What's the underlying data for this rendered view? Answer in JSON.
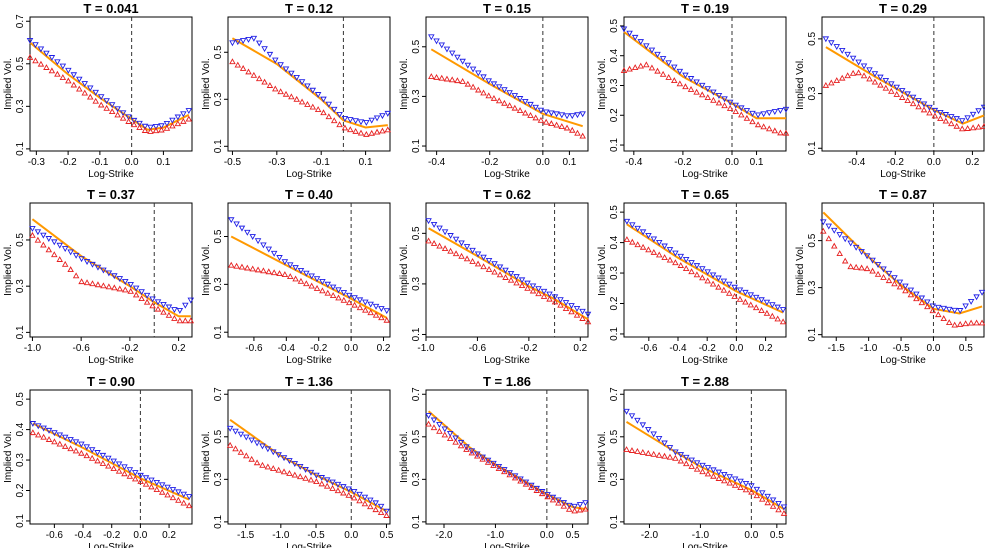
{
  "figure": {
    "xlabel": "Log-Strike",
    "ylabel": "Implied Vol."
  },
  "series_colors": {
    "ask": "#1f1fe6",
    "bid": "#e61f1f",
    "fit": "#ff9900",
    "atm_line": "#333333"
  },
  "chart_data": [
    {
      "type": "scatter",
      "title": "T = 0.041",
      "T": 0.041,
      "xlim": [
        -0.32,
        0.19
      ],
      "ylim": [
        0.09,
        0.72
      ],
      "xticks": [
        "-0.3",
        "-0.2",
        "-0.1",
        "0.0",
        "0.1"
      ],
      "yticks": [
        "0.1",
        "0.3",
        "0.5",
        "0.7"
      ],
      "atm": 0.0,
      "x_min": -0.32,
      "x_max": 0.18,
      "fit": [
        [
          -0.32,
          0.6
        ],
        [
          -0.2,
          0.45
        ],
        [
          -0.1,
          0.34
        ],
        [
          0.0,
          0.24
        ],
        [
          0.05,
          0.19
        ],
        [
          0.1,
          0.2
        ],
        [
          0.18,
          0.26
        ]
      ],
      "ask": [
        [
          -0.32,
          0.61
        ],
        [
          -0.2,
          0.47
        ],
        [
          -0.1,
          0.35
        ],
        [
          0.0,
          0.24
        ],
        [
          0.05,
          0.2
        ],
        [
          0.1,
          0.21
        ],
        [
          0.18,
          0.28
        ]
      ],
      "bid": [
        [
          -0.32,
          0.53
        ],
        [
          -0.2,
          0.42
        ],
        [
          -0.1,
          0.31
        ],
        [
          0.0,
          0.22
        ],
        [
          0.05,
          0.18
        ],
        [
          0.1,
          0.19
        ],
        [
          0.18,
          0.24
        ]
      ]
    },
    {
      "type": "scatter",
      "title": "T = 0.12",
      "T": 0.12,
      "xlim": [
        -0.52,
        0.21
      ],
      "ylim": [
        0.08,
        0.65
      ],
      "xticks": [
        "-0.5",
        "-0.3",
        "-0.1",
        "0.1"
      ],
      "yticks": [
        "0.1",
        "0.3",
        "0.5"
      ],
      "atm": 0.0,
      "x_min": -0.5,
      "x_max": 0.2,
      "fit": [
        [
          -0.5,
          0.56
        ],
        [
          -0.3,
          0.45
        ],
        [
          -0.1,
          0.3
        ],
        [
          0.0,
          0.21
        ],
        [
          0.1,
          0.18
        ],
        [
          0.2,
          0.19
        ]
      ],
      "ask": [
        [
          -0.5,
          0.54
        ],
        [
          -0.4,
          0.56
        ],
        [
          -0.3,
          0.46
        ],
        [
          -0.1,
          0.31
        ],
        [
          0.0,
          0.22
        ],
        [
          0.1,
          0.2
        ],
        [
          0.2,
          0.24
        ]
      ],
      "bid": [
        [
          -0.5,
          0.46
        ],
        [
          -0.4,
          0.4
        ],
        [
          -0.3,
          0.34
        ],
        [
          -0.1,
          0.25
        ],
        [
          0.0,
          0.18
        ],
        [
          0.1,
          0.15
        ],
        [
          0.2,
          0.17
        ]
      ]
    },
    {
      "type": "scatter",
      "title": "T = 0.15",
      "T": 0.15,
      "xlim": [
        -0.44,
        0.17
      ],
      "ylim": [
        0.08,
        0.62
      ],
      "xticks": [
        "-0.4",
        "-0.2",
        "0.0",
        "0.1"
      ],
      "yticks": [
        "0.1",
        "0.3",
        "0.5"
      ],
      "atm": 0.0,
      "x_min": -0.42,
      "x_max": 0.15,
      "fit": [
        [
          -0.42,
          0.49
        ],
        [
          -0.2,
          0.35
        ],
        [
          0.0,
          0.23
        ],
        [
          0.15,
          0.18
        ]
      ],
      "ask": [
        [
          -0.42,
          0.54
        ],
        [
          -0.3,
          0.44
        ],
        [
          -0.2,
          0.36
        ],
        [
          0.0,
          0.24
        ],
        [
          0.1,
          0.22
        ],
        [
          0.15,
          0.23
        ]
      ],
      "bid": [
        [
          -0.42,
          0.38
        ],
        [
          -0.3,
          0.36
        ],
        [
          -0.2,
          0.3
        ],
        [
          0.0,
          0.2
        ],
        [
          0.1,
          0.17
        ],
        [
          0.15,
          0.14
        ]
      ]
    },
    {
      "type": "scatter",
      "title": "T = 0.19",
      "T": 0.19,
      "xlim": [
        -0.44,
        0.22
      ],
      "ylim": [
        0.08,
        0.53
      ],
      "xticks": [
        "-0.4",
        "-0.2",
        "0.0",
        "0.1"
      ],
      "yticks": [
        "0.1",
        "0.2",
        "0.3",
        "0.4",
        "0.5"
      ],
      "atm": 0.0,
      "x_min": -0.44,
      "x_max": 0.22,
      "fit": [
        [
          -0.44,
          0.48
        ],
        [
          -0.2,
          0.33
        ],
        [
          0.0,
          0.24
        ],
        [
          0.1,
          0.19
        ],
        [
          0.22,
          0.19
        ]
      ],
      "ask": [
        [
          -0.44,
          0.49
        ],
        [
          -0.2,
          0.34
        ],
        [
          0.0,
          0.24
        ],
        [
          0.1,
          0.2
        ],
        [
          0.22,
          0.22
        ]
      ],
      "bid": [
        [
          -0.44,
          0.35
        ],
        [
          -0.35,
          0.37
        ],
        [
          -0.2,
          0.3
        ],
        [
          0.0,
          0.22
        ],
        [
          0.1,
          0.17
        ],
        [
          0.2,
          0.14
        ]
      ]
    },
    {
      "type": "scatter",
      "title": "T = 0.29",
      "T": 0.29,
      "xlim": [
        -0.58,
        0.26
      ],
      "ylim": [
        0.09,
        0.58
      ],
      "xticks": [
        "-0.4",
        "-0.2",
        "0.0",
        "0.2"
      ],
      "yticks": [
        "0.1",
        "0.3",
        "0.5"
      ],
      "atm": 0.0,
      "x_min": -0.56,
      "x_max": 0.26,
      "fit": [
        [
          -0.56,
          0.47
        ],
        [
          -0.3,
          0.36
        ],
        [
          0.0,
          0.24
        ],
        [
          0.15,
          0.19
        ],
        [
          0.26,
          0.22
        ]
      ],
      "ask": [
        [
          -0.56,
          0.5
        ],
        [
          -0.3,
          0.37
        ],
        [
          0.0,
          0.24
        ],
        [
          0.15,
          0.2
        ],
        [
          0.26,
          0.25
        ]
      ],
      "bid": [
        [
          -0.56,
          0.33
        ],
        [
          -0.4,
          0.38
        ],
        [
          -0.3,
          0.34
        ],
        [
          0.0,
          0.22
        ],
        [
          0.15,
          0.17
        ],
        [
          0.26,
          0.18
        ]
      ]
    },
    {
      "type": "scatter",
      "title": "T = 0.37",
      "T": 0.37,
      "xlim": [
        -1.02,
        0.31
      ],
      "ylim": [
        0.08,
        0.66
      ],
      "xticks": [
        "-1.0",
        "-0.6",
        "-0.2",
        "0.2"
      ],
      "yticks": [
        "0.1",
        "0.3",
        "0.5"
      ],
      "atm": 0.0,
      "x_min": -1.0,
      "x_max": 0.3,
      "fit": [
        [
          -1.0,
          0.59
        ],
        [
          -0.6,
          0.43
        ],
        [
          -0.2,
          0.3
        ],
        [
          0.0,
          0.23
        ],
        [
          0.2,
          0.17
        ],
        [
          0.3,
          0.17
        ]
      ],
      "ask": [
        [
          -1.0,
          0.55
        ],
        [
          -0.6,
          0.42
        ],
        [
          -0.2,
          0.31
        ],
        [
          0.0,
          0.24
        ],
        [
          0.2,
          0.19
        ],
        [
          0.3,
          0.24
        ]
      ],
      "bid": [
        [
          -1.0,
          0.52
        ],
        [
          -0.7,
          0.38
        ],
        [
          -0.6,
          0.32
        ],
        [
          -0.2,
          0.28
        ],
        [
          0.0,
          0.21
        ],
        [
          0.2,
          0.15
        ],
        [
          0.25,
          0.15
        ]
      ]
    },
    {
      "type": "scatter",
      "title": "T = 0.40",
      "T": 0.4,
      "xlim": [
        -0.76,
        0.24
      ],
      "ylim": [
        0.08,
        0.64
      ],
      "xticks": [
        "-0.6",
        "-0.4",
        "-0.2",
        "0.0",
        "0.2"
      ],
      "yticks": [
        "0.1",
        "0.3",
        "0.5"
      ],
      "atm": 0.0,
      "x_min": -0.74,
      "x_max": 0.22,
      "fit": [
        [
          -0.74,
          0.5
        ],
        [
          -0.4,
          0.38
        ],
        [
          0.0,
          0.24
        ],
        [
          0.22,
          0.16
        ]
      ],
      "ask": [
        [
          -0.74,
          0.57
        ],
        [
          -0.4,
          0.39
        ],
        [
          0.0,
          0.25
        ],
        [
          0.22,
          0.19
        ]
      ],
      "bid": [
        [
          -0.74,
          0.38
        ],
        [
          -0.4,
          0.34
        ],
        [
          0.0,
          0.22
        ],
        [
          0.22,
          0.15
        ]
      ]
    },
    {
      "type": "scatter",
      "title": "T = 0.62",
      "T": 0.62,
      "xlim": [
        -1.0,
        0.26
      ],
      "ylim": [
        0.09,
        0.62
      ],
      "xticks": [
        "-1.0",
        "-0.6",
        "-0.2",
        "0.2"
      ],
      "yticks": [
        "0.1",
        "0.3",
        "0.5"
      ],
      "atm": 0.0,
      "x_min": -0.98,
      "x_max": 0.26,
      "fit": [
        [
          -0.98,
          0.52
        ],
        [
          -0.6,
          0.41
        ],
        [
          -0.2,
          0.29
        ],
        [
          0.0,
          0.24
        ],
        [
          0.26,
          0.16
        ]
      ],
      "ask": [
        [
          -0.98,
          0.55
        ],
        [
          -0.6,
          0.42
        ],
        [
          -0.2,
          0.3
        ],
        [
          0.0,
          0.25
        ],
        [
          0.26,
          0.18
        ]
      ],
      "bid": [
        [
          -0.98,
          0.47
        ],
        [
          -0.6,
          0.38
        ],
        [
          -0.2,
          0.28
        ],
        [
          0.0,
          0.23
        ],
        [
          0.26,
          0.15
        ]
      ]
    },
    {
      "type": "scatter",
      "title": "T = 0.65",
      "T": 0.65,
      "xlim": [
        -0.77,
        0.34
      ],
      "ylim": [
        0.09,
        0.53
      ],
      "xticks": [
        "-0.6",
        "-0.4",
        "-0.2",
        "0.0",
        "0.2"
      ],
      "yticks": [
        "0.1",
        "0.2",
        "0.3",
        "0.4",
        "0.5"
      ],
      "atm": 0.0,
      "x_min": -0.75,
      "x_max": 0.32,
      "fit": [
        [
          -0.75,
          0.46
        ],
        [
          -0.4,
          0.35
        ],
        [
          0.0,
          0.24
        ],
        [
          0.32,
          0.17
        ]
      ],
      "ask": [
        [
          -0.75,
          0.47
        ],
        [
          -0.4,
          0.36
        ],
        [
          0.0,
          0.25
        ],
        [
          0.32,
          0.18
        ]
      ],
      "bid": [
        [
          -0.75,
          0.41
        ],
        [
          -0.4,
          0.33
        ],
        [
          0.0,
          0.22
        ],
        [
          0.32,
          0.14
        ]
      ]
    },
    {
      "type": "scatter",
      "title": "T = 0.87",
      "T": 0.87,
      "xlim": [
        -1.72,
        0.78
      ],
      "ylim": [
        0.09,
        0.66
      ],
      "xticks": [
        "-1.5",
        "-1.0",
        "-0.5",
        "0.0",
        "0.5"
      ],
      "yticks": [
        "0.1",
        "0.3",
        "0.5"
      ],
      "atm": 0.0,
      "x_min": -1.7,
      "x_max": 0.75,
      "fit": [
        [
          -1.7,
          0.62
        ],
        [
          -1.0,
          0.43
        ],
        [
          -0.5,
          0.31
        ],
        [
          0.0,
          0.21
        ],
        [
          0.4,
          0.19
        ],
        [
          0.75,
          0.22
        ]
      ],
      "ask": [
        [
          -1.7,
          0.58
        ],
        [
          -1.0,
          0.43
        ],
        [
          -0.5,
          0.32
        ],
        [
          0.0,
          0.22
        ],
        [
          0.4,
          0.2
        ],
        [
          0.75,
          0.28
        ]
      ],
      "bid": [
        [
          -1.7,
          0.54
        ],
        [
          -1.3,
          0.39
        ],
        [
          -1.0,
          0.38
        ],
        [
          -0.5,
          0.3
        ],
        [
          0.0,
          0.2
        ],
        [
          0.3,
          0.14
        ],
        [
          0.6,
          0.15
        ]
      ]
    },
    {
      "type": "scatter",
      "title": "T = 0.90",
      "T": 0.9,
      "xlim": [
        -0.77,
        0.36
      ],
      "ylim": [
        0.09,
        0.53
      ],
      "xticks": [
        "-0.6",
        "-0.4",
        "-0.2",
        "0.0",
        "0.2"
      ],
      "yticks": [
        "0.1",
        "0.2",
        "0.3",
        "0.4",
        "0.5"
      ],
      "atm": 0.0,
      "x_min": -0.75,
      "x_max": 0.34,
      "fit": [
        [
          -0.75,
          0.42
        ],
        [
          -0.4,
          0.34
        ],
        [
          0.0,
          0.24
        ],
        [
          0.34,
          0.17
        ]
      ],
      "ask": [
        [
          -0.75,
          0.42
        ],
        [
          -0.4,
          0.35
        ],
        [
          0.0,
          0.25
        ],
        [
          0.34,
          0.18
        ]
      ],
      "bid": [
        [
          -0.75,
          0.39
        ],
        [
          -0.4,
          0.32
        ],
        [
          0.0,
          0.23
        ],
        [
          0.34,
          0.15
        ]
      ]
    },
    {
      "type": "scatter",
      "title": "T = 1.36",
      "T": 1.36,
      "xlim": [
        -1.75,
        0.55
      ],
      "ylim": [
        0.09,
        0.72
      ],
      "xticks": [
        "-1.5",
        "-1.0",
        "-0.5",
        "0.0",
        "0.5"
      ],
      "yticks": [
        "0.1",
        "0.3",
        "0.5",
        "0.7"
      ],
      "atm": 0.0,
      "x_min": -1.72,
      "x_max": 0.5,
      "fit": [
        [
          -1.72,
          0.58
        ],
        [
          -1.0,
          0.41
        ],
        [
          -0.5,
          0.32
        ],
        [
          0.0,
          0.24
        ],
        [
          0.5,
          0.15
        ]
      ],
      "ask": [
        [
          -1.72,
          0.54
        ],
        [
          -1.0,
          0.41
        ],
        [
          -0.5,
          0.32
        ],
        [
          0.0,
          0.25
        ],
        [
          0.4,
          0.18
        ],
        [
          0.5,
          0.15
        ]
      ],
      "bid": [
        [
          -1.72,
          0.46
        ],
        [
          -1.3,
          0.37
        ],
        [
          -1.0,
          0.34
        ],
        [
          -0.5,
          0.29
        ],
        [
          0.0,
          0.22
        ],
        [
          0.5,
          0.13
        ]
      ]
    },
    {
      "type": "scatter",
      "title": "T = 1.86",
      "T": 1.86,
      "xlim": [
        -2.35,
        0.8
      ],
      "ylim": [
        0.09,
        0.72
      ],
      "xticks": [
        "-2.0",
        "-1.0",
        "0.0",
        "0.5"
      ],
      "yticks": [
        "0.1",
        "0.3",
        "0.5",
        "0.7"
      ],
      "atm": 0.0,
      "x_min": -2.3,
      "x_max": 0.75,
      "fit": [
        [
          -2.3,
          0.62
        ],
        [
          -1.5,
          0.45
        ],
        [
          -1.0,
          0.37
        ],
        [
          0.0,
          0.23
        ],
        [
          0.5,
          0.17
        ],
        [
          0.75,
          0.16
        ]
      ],
      "ask": [
        [
          -2.3,
          0.6
        ],
        [
          -1.5,
          0.44
        ],
        [
          -1.0,
          0.37
        ],
        [
          0.0,
          0.23
        ],
        [
          0.5,
          0.17
        ],
        [
          0.75,
          0.19
        ]
      ],
      "bid": [
        [
          -2.3,
          0.56
        ],
        [
          -1.5,
          0.43
        ],
        [
          -1.0,
          0.36
        ],
        [
          0.0,
          0.22
        ],
        [
          0.5,
          0.15
        ],
        [
          0.75,
          0.16
        ]
      ]
    },
    {
      "type": "scatter",
      "title": "T = 2.88",
      "T": 2.88,
      "xlim": [
        -2.5,
        0.68
      ],
      "ylim": [
        0.09,
        0.72
      ],
      "xticks": [
        "-2.0",
        "-1.0",
        "0.0",
        "0.5"
      ],
      "yticks": [
        "0.1",
        "0.3",
        "0.5",
        "0.7"
      ],
      "atm": 0.0,
      "x_min": -2.45,
      "x_max": 0.64,
      "fit": [
        [
          -2.45,
          0.57
        ],
        [
          -1.5,
          0.43
        ],
        [
          -1.0,
          0.36
        ],
        [
          0.0,
          0.25
        ],
        [
          0.64,
          0.16
        ]
      ],
      "ask": [
        [
          -2.45,
          0.62
        ],
        [
          -1.5,
          0.43
        ],
        [
          -1.0,
          0.37
        ],
        [
          0.0,
          0.27
        ],
        [
          0.64,
          0.17
        ]
      ],
      "bid": [
        [
          -2.45,
          0.44
        ],
        [
          -1.5,
          0.4
        ],
        [
          -1.0,
          0.34
        ],
        [
          0.0,
          0.24
        ],
        [
          0.64,
          0.14
        ]
      ]
    }
  ]
}
